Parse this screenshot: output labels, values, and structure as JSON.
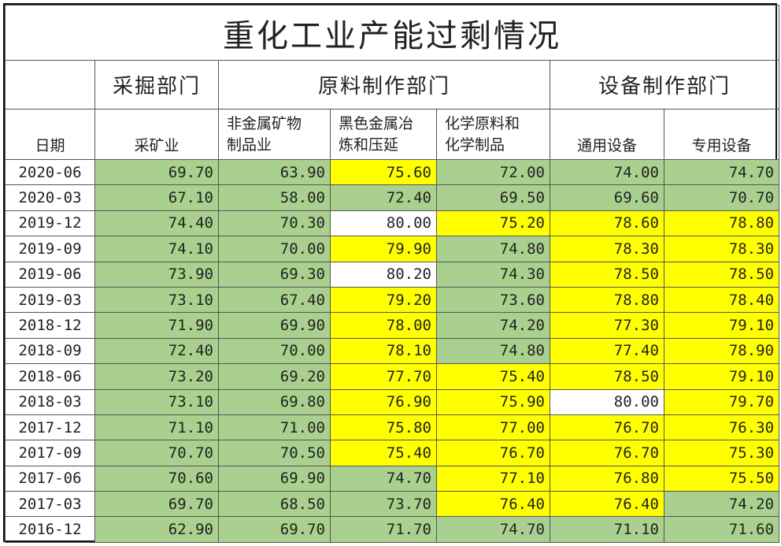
{
  "title": "重化工业产能过剩情况",
  "groups": {
    "mining": "采掘部门",
    "materials": "原料制作部门",
    "equipment": "设备制作部门"
  },
  "columns": {
    "date": "日期",
    "mining_industry": "采矿业",
    "nonmetal_1": "非金属矿物",
    "nonmetal_2": "制品业",
    "ferrous_1": "黑色金属冶",
    "ferrous_2": "炼和压延",
    "chemical_1": "化学原料和",
    "chemical_2": "化学制品",
    "general_equipment": "通用设备",
    "special_equipment": "专用设备"
  },
  "colors": {
    "green": "#a9d08e",
    "yellow": "#ffff00",
    "white": "#ffffff"
  },
  "rows": [
    {
      "date": "2020-06",
      "values": [
        "69.70",
        "63.90",
        "75.60",
        "72.00",
        "74.00",
        "74.70"
      ],
      "colors": [
        "green",
        "green",
        "yellow",
        "green",
        "green",
        "green"
      ]
    },
    {
      "date": "2020-03",
      "values": [
        "67.10",
        "58.00",
        "72.40",
        "69.50",
        "69.60",
        "70.70"
      ],
      "colors": [
        "green",
        "green",
        "green",
        "green",
        "green",
        "green"
      ]
    },
    {
      "date": "2019-12",
      "values": [
        "74.40",
        "70.30",
        "80.00",
        "75.20",
        "78.60",
        "78.80"
      ],
      "colors": [
        "green",
        "green",
        "white",
        "yellow",
        "yellow",
        "yellow"
      ]
    },
    {
      "date": "2019-09",
      "values": [
        "74.10",
        "70.00",
        "79.90",
        "74.80",
        "78.30",
        "78.30"
      ],
      "colors": [
        "green",
        "green",
        "yellow",
        "green",
        "yellow",
        "yellow"
      ]
    },
    {
      "date": "2019-06",
      "values": [
        "73.90",
        "69.30",
        "80.20",
        "74.30",
        "78.50",
        "78.50"
      ],
      "colors": [
        "green",
        "green",
        "white",
        "green",
        "yellow",
        "yellow"
      ]
    },
    {
      "date": "2019-03",
      "values": [
        "73.10",
        "67.40",
        "79.20",
        "73.60",
        "78.80",
        "78.40"
      ],
      "colors": [
        "green",
        "green",
        "yellow",
        "green",
        "yellow",
        "yellow"
      ]
    },
    {
      "date": "2018-12",
      "values": [
        "71.90",
        "69.90",
        "78.00",
        "74.20",
        "77.30",
        "79.10"
      ],
      "colors": [
        "green",
        "green",
        "yellow",
        "green",
        "yellow",
        "yellow"
      ]
    },
    {
      "date": "2018-09",
      "values": [
        "72.40",
        "70.00",
        "78.10",
        "74.80",
        "77.40",
        "78.90"
      ],
      "colors": [
        "green",
        "green",
        "yellow",
        "green",
        "yellow",
        "yellow"
      ]
    },
    {
      "date": "2018-06",
      "values": [
        "73.20",
        "69.20",
        "77.70",
        "75.40",
        "78.50",
        "79.10"
      ],
      "colors": [
        "green",
        "green",
        "yellow",
        "yellow",
        "yellow",
        "yellow"
      ]
    },
    {
      "date": "2018-03",
      "values": [
        "73.10",
        "69.80",
        "76.90",
        "75.90",
        "80.00",
        "79.70"
      ],
      "colors": [
        "green",
        "green",
        "yellow",
        "yellow",
        "white",
        "yellow"
      ]
    },
    {
      "date": "2017-12",
      "values": [
        "71.10",
        "71.00",
        "75.80",
        "77.00",
        "76.70",
        "76.30"
      ],
      "colors": [
        "green",
        "green",
        "yellow",
        "yellow",
        "yellow",
        "yellow"
      ]
    },
    {
      "date": "2017-09",
      "values": [
        "70.70",
        "70.50",
        "75.40",
        "76.70",
        "76.70",
        "75.30"
      ],
      "colors": [
        "green",
        "green",
        "yellow",
        "yellow",
        "yellow",
        "yellow"
      ]
    },
    {
      "date": "2017-06",
      "values": [
        "70.60",
        "69.90",
        "74.70",
        "77.10",
        "76.80",
        "75.50"
      ],
      "colors": [
        "green",
        "green",
        "green",
        "yellow",
        "yellow",
        "yellow"
      ]
    },
    {
      "date": "2017-03",
      "values": [
        "69.70",
        "68.50",
        "73.70",
        "76.40",
        "76.40",
        "74.20"
      ],
      "colors": [
        "green",
        "green",
        "green",
        "yellow",
        "yellow",
        "green"
      ]
    },
    {
      "date": "2016-12",
      "values": [
        "62.90",
        "69.70",
        "71.70",
        "74.70",
        "71.10",
        "71.60"
      ],
      "colors": [
        "green",
        "green",
        "green",
        "green",
        "green",
        "green"
      ]
    }
  ]
}
